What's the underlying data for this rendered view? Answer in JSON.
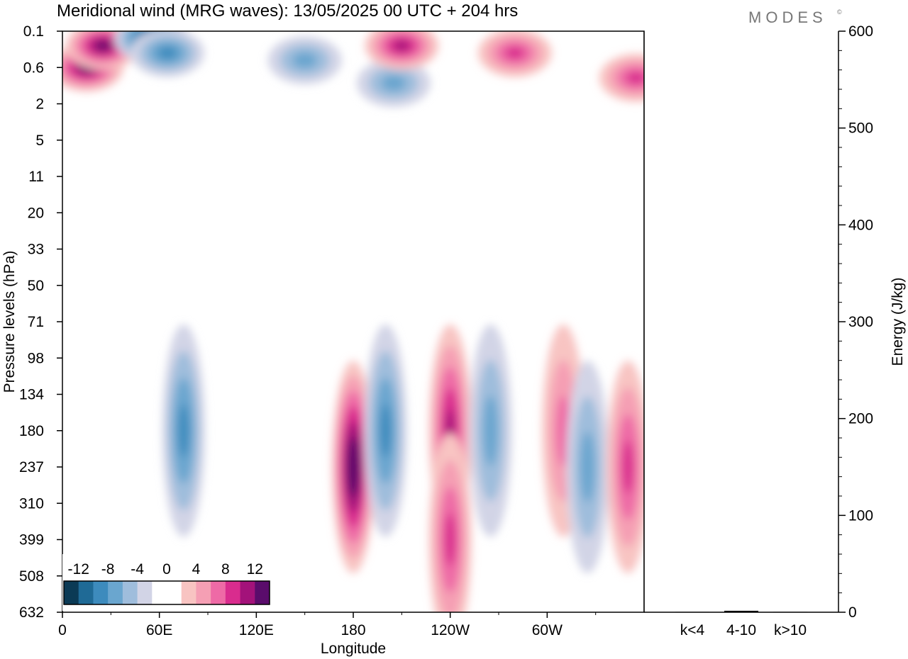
{
  "header": {
    "title": "Meridional wind (MRG waves):  13/05/2025  00 UTC  + 204 hrs",
    "brand": "MODES",
    "brand_mark": "©"
  },
  "chart_data": [
    {
      "type": "heatmap",
      "xlabel": "Longitude",
      "ylabel": "Pressure levels (hPa)",
      "x_ticks": [
        "0",
        "60E",
        "120E",
        "180",
        "120W",
        "60W"
      ],
      "y_ticks": [
        "0.1",
        "0.6",
        "2",
        "5",
        "11",
        "20",
        "33",
        "50",
        "71",
        "98",
        "134",
        "180",
        "237",
        "310",
        "399",
        "508",
        "632"
      ],
      "y_scale": "categorical pressure levels (top = 0.1 hPa, bottom = 632 hPa)",
      "x_range": [
        "0",
        "360"
      ],
      "colorbar": {
        "labels": [
          "-12",
          "-8",
          "-4",
          "0",
          "4",
          "8",
          "12"
        ],
        "levels": [
          -14,
          -12,
          -10,
          -8,
          -6,
          -4,
          -2,
          0,
          2,
          4,
          6,
          8,
          10,
          12,
          14
        ],
        "colors": [
          "#0b3a55",
          "#1f6a96",
          "#3d8bbd",
          "#6aa6cf",
          "#9fbddc",
          "#d2d4e6",
          "#ffffff",
          "#ffffff",
          "#f8c4c2",
          "#f59fb4",
          "#ee6aa6",
          "#d92c8e",
          "#a3127a",
          "#5a0c6b"
        ],
        "placement": "bottom-left inside plot"
      },
      "features": [
        {
          "lon": 15,
          "level": 0.6,
          "sign": "+",
          "peak": 12
        },
        {
          "lon": 25,
          "level": 0.3,
          "sign": "+",
          "peak": 12
        },
        {
          "lon": 55,
          "level": 0.2,
          "sign": "-",
          "peak": -12
        },
        {
          "lon": 65,
          "level": 0.4,
          "sign": "-",
          "peak": -8
        },
        {
          "lon": 150,
          "level": 0.5,
          "sign": "-",
          "peak": -6
        },
        {
          "lon": 205,
          "level": 1.2,
          "sign": "-",
          "peak": -6
        },
        {
          "lon": 210,
          "level": 0.3,
          "sign": "+",
          "peak": 10
        },
        {
          "lon": 280,
          "level": 0.4,
          "sign": "+",
          "peak": 8
        },
        {
          "lon": 355,
          "level": 1.0,
          "sign": "+",
          "peak": 8
        },
        {
          "lon": 75,
          "level": 180,
          "sign": "-",
          "peak": -8
        },
        {
          "lon": 180,
          "level": 237,
          "sign": "+",
          "peak": 14
        },
        {
          "lon": 200,
          "level": 180,
          "sign": "-",
          "peak": -8
        },
        {
          "lon": 240,
          "level": 180,
          "sign": "+",
          "peak": 10
        },
        {
          "lon": 240,
          "level": 399,
          "sign": "+",
          "peak": 8
        },
        {
          "lon": 265,
          "level": 180,
          "sign": "-",
          "peak": -6
        },
        {
          "lon": 310,
          "level": 180,
          "sign": "+",
          "peak": 6
        },
        {
          "lon": 325,
          "level": 237,
          "sign": "-",
          "peak": -6
        },
        {
          "lon": 350,
          "level": 237,
          "sign": "+",
          "peak": 8
        }
      ]
    },
    {
      "type": "bar",
      "ylabel": "Energy (J/kg)",
      "categories": [
        "k<4",
        "4-10",
        "k>10"
      ],
      "values": [
        0.4,
        1.5,
        0.4
      ],
      "ylim": [
        0,
        600
      ],
      "y_ticks": [
        "0",
        "100",
        "200",
        "300",
        "400",
        "500",
        "600"
      ],
      "bar_color": "#000000"
    }
  ]
}
